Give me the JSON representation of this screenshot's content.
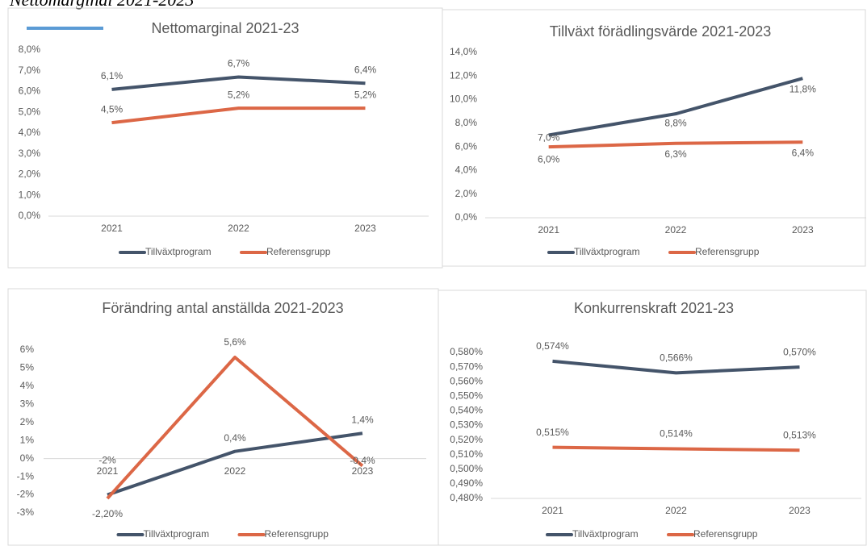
{
  "caption": "Nettomarginal 2021-2023",
  "chart_data": [
    {
      "type": "line",
      "title": "Nettomarginal 2021-23",
      "categories": [
        "2021",
        "2022",
        "2023"
      ],
      "series": [
        {
          "name": "Tillväxtprogram",
          "color": "#44546a",
          "values": [
            6.1,
            6.7,
            6.4
          ],
          "value_labels": [
            "6,1%",
            "6,7%",
            "6,4%"
          ]
        },
        {
          "name": "Referensgrupp",
          "color": "#dc6746",
          "values": [
            4.5,
            5.2,
            5.2
          ],
          "value_labels": [
            "4,5%",
            "5,2%",
            "5,2%"
          ]
        }
      ],
      "ylim": [
        0,
        8
      ],
      "yticks": [
        {
          "value": 0,
          "label": "0,0%"
        },
        {
          "value": 1,
          "label": "1,0%"
        },
        {
          "value": 2,
          "label": "2,0%"
        },
        {
          "value": 3,
          "label": "3,0%"
        },
        {
          "value": 4,
          "label": "4,0%"
        },
        {
          "value": 5,
          "label": "5,0%"
        },
        {
          "value": 6,
          "label": "6,0%"
        },
        {
          "value": 7,
          "label": "7,0%"
        },
        {
          "value": 8,
          "label": "8,0%"
        }
      ],
      "legend": "bottom"
    },
    {
      "type": "line",
      "title": "Tillväxt förädlingsvärde 2021-2023",
      "categories": [
        "2021",
        "2022",
        "2023"
      ],
      "series": [
        {
          "name": "Tillväxtprogram",
          "color": "#44546a",
          "values": [
            7.0,
            8.8,
            11.8
          ],
          "value_labels": [
            "7,0%",
            "8,8%",
            "11,8%"
          ]
        },
        {
          "name": "Referensgrupp",
          "color": "#dc6746",
          "values": [
            6.0,
            6.3,
            6.4
          ],
          "value_labels": [
            "6,0%",
            "6,3%",
            "6,4%"
          ]
        }
      ],
      "ylim": [
        0,
        14
      ],
      "yticks": [
        {
          "value": 0,
          "label": "0,0%"
        },
        {
          "value": 2,
          "label": "2,0%"
        },
        {
          "value": 4,
          "label": "4,0%"
        },
        {
          "value": 6,
          "label": "6,0%"
        },
        {
          "value": 8,
          "label": "8,0%"
        },
        {
          "value": 10,
          "label": "10,0%"
        },
        {
          "value": 12,
          "label": "12,0%"
        },
        {
          "value": 14,
          "label": "14,0%"
        }
      ],
      "legend": "bottom"
    },
    {
      "type": "line",
      "title": "Förändring antal anställda 2021-2023",
      "categories": [
        "2021",
        "2022",
        "2023"
      ],
      "series": [
        {
          "name": "Tillväxtprogram",
          "color": "#44546a",
          "values": [
            -2,
            0.4,
            1.4
          ],
          "value_labels": [
            "-2%",
            "0,4%",
            "1,4%"
          ]
        },
        {
          "name": "Referensgrupp",
          "color": "#dc6746",
          "values": [
            -2.2,
            5.6,
            -0.4
          ],
          "value_labels": [
            "-2,20%",
            "5,6%",
            "-0,4%"
          ]
        }
      ],
      "ylim": [
        -3,
        6
      ],
      "yticks": [
        {
          "value": -3,
          "label": "-3%"
        },
        {
          "value": -2,
          "label": "-2%"
        },
        {
          "value": -1,
          "label": "-1%"
        },
        {
          "value": 0,
          "label": "0%"
        },
        {
          "value": 1,
          "label": "1%"
        },
        {
          "value": 2,
          "label": "2%"
        },
        {
          "value": 3,
          "label": "3%"
        },
        {
          "value": 4,
          "label": "4%"
        },
        {
          "value": 5,
          "label": "5%"
        },
        {
          "value": 6,
          "label": "6%"
        }
      ],
      "legend": "bottom"
    },
    {
      "type": "line",
      "title": "Konkurrenskraft 2021-23",
      "categories": [
        "2021",
        "2022",
        "2023"
      ],
      "series": [
        {
          "name": "Tillväxtprogram",
          "color": "#44546a",
          "values": [
            0.574,
            0.566,
            0.57
          ],
          "value_labels": [
            "0,574%",
            "0,566%",
            "0,570%"
          ]
        },
        {
          "name": "Referensgrupp",
          "color": "#dc6746",
          "values": [
            0.515,
            0.514,
            0.513
          ],
          "value_labels": [
            "0,515%",
            "0,514%",
            "0,513%"
          ]
        }
      ],
      "ylim": [
        0.48,
        0.58
      ],
      "yticks": [
        {
          "value": 0.48,
          "label": "0,480%"
        },
        {
          "value": 0.49,
          "label": "0,490%"
        },
        {
          "value": 0.5,
          "label": "0,500%"
        },
        {
          "value": 0.51,
          "label": "0,510%"
        },
        {
          "value": 0.52,
          "label": "0,520%"
        },
        {
          "value": 0.53,
          "label": "0,530%"
        },
        {
          "value": 0.54,
          "label": "0,540%"
        },
        {
          "value": 0.55,
          "label": "0,550%"
        },
        {
          "value": 0.56,
          "label": "0,560%"
        },
        {
          "value": 0.57,
          "label": "0,570%"
        },
        {
          "value": 0.58,
          "label": "0,580%"
        }
      ],
      "legend": "bottom"
    }
  ]
}
